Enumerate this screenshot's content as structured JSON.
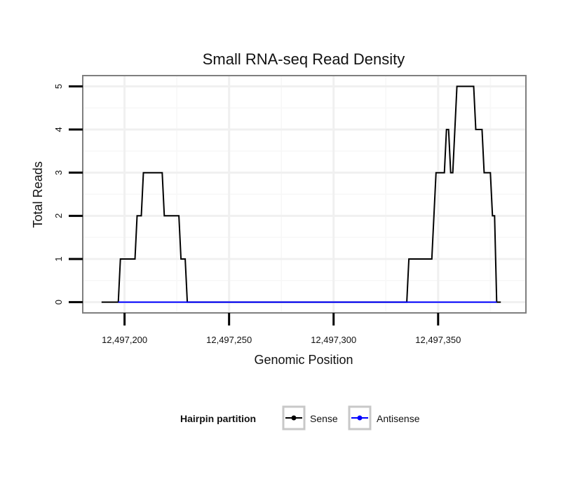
{
  "chart_data": {
    "type": "line",
    "title": "Small RNA-seq Read Density",
    "xlabel": "Genomic Position",
    "ylabel": "Total Reads",
    "xlim": [
      12497180,
      12497392
    ],
    "ylim": [
      -0.25,
      5.25
    ],
    "x_ticks": [
      {
        "value": 12497200,
        "label": "12,497,200"
      },
      {
        "value": 12497250,
        "label": "12,497,250"
      },
      {
        "value": 12497300,
        "label": "12,497,300"
      },
      {
        "value": 12497350,
        "label": "12,497,350"
      }
    ],
    "y_ticks": [
      {
        "value": 0,
        "label": "0"
      },
      {
        "value": 1,
        "label": "1"
      },
      {
        "value": 2,
        "label": "2"
      },
      {
        "value": 3,
        "label": "3"
      },
      {
        "value": 4,
        "label": "4"
      },
      {
        "value": 5,
        "label": "5"
      }
    ],
    "grid": true,
    "legend": {
      "title": "Hairpin partition",
      "position": "bottom"
    },
    "series": [
      {
        "name": "Sense",
        "color": "#000000",
        "points": [
          [
            12497189,
            0
          ],
          [
            12497197,
            0
          ],
          [
            12497198,
            1
          ],
          [
            12497205,
            1
          ],
          [
            12497206,
            2
          ],
          [
            12497208,
            2
          ],
          [
            12497209,
            3
          ],
          [
            12497218,
            3
          ],
          [
            12497219,
            2
          ],
          [
            12497226,
            2
          ],
          [
            12497227,
            1
          ],
          [
            12497229,
            1
          ],
          [
            12497230,
            0
          ],
          [
            12497335,
            0
          ],
          [
            12497336,
            1
          ],
          [
            12497347,
            1
          ],
          [
            12497349,
            3
          ],
          [
            12497353,
            3
          ],
          [
            12497354,
            4
          ],
          [
            12497355,
            4
          ],
          [
            12497356,
            3
          ],
          [
            12497357,
            3
          ],
          [
            12497359,
            5
          ],
          [
            12497367,
            5
          ],
          [
            12497368,
            4
          ],
          [
            12497371,
            4
          ],
          [
            12497372,
            3
          ],
          [
            12497375,
            3
          ],
          [
            12497376,
            2
          ],
          [
            12497377,
            2
          ],
          [
            12497378,
            0
          ],
          [
            12497380,
            0
          ]
        ]
      },
      {
        "name": "Antisense",
        "color": "#0000ff",
        "points": [
          [
            12497197,
            0
          ],
          [
            12497230,
            0
          ],
          [
            12497335,
            0
          ],
          [
            12497378,
            0
          ]
        ]
      }
    ]
  }
}
